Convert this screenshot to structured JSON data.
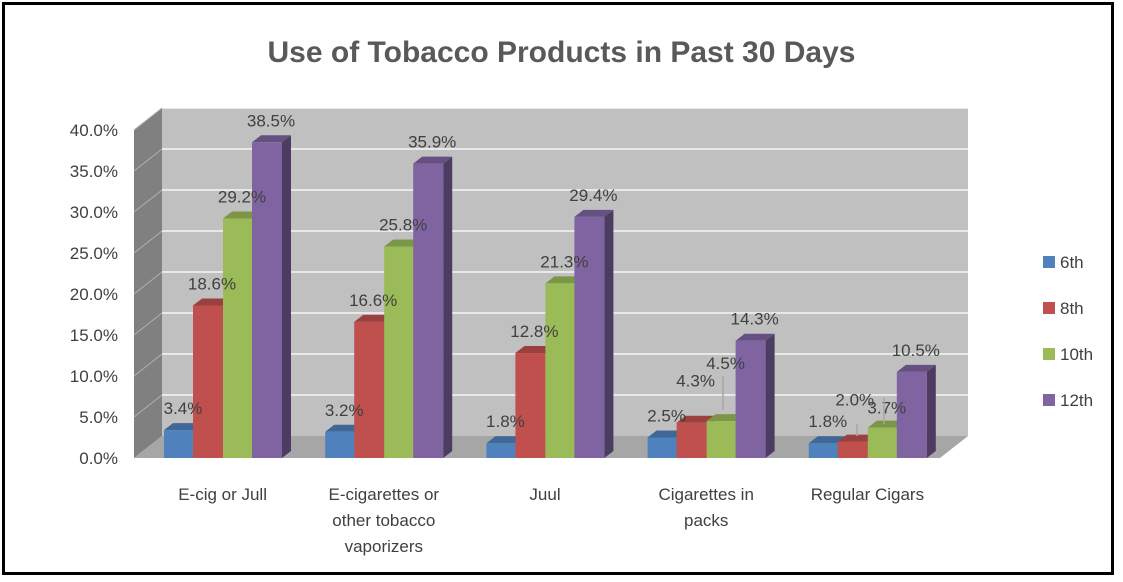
{
  "chart_data": {
    "type": "bar",
    "title": "Use of Tobacco Products in Past 30 Days",
    "categories": [
      [
        "E-cig or Jull"
      ],
      [
        "E-cigarettes or",
        "other tobacco",
        "vaporizers"
      ],
      [
        "Juul"
      ],
      [
        "Cigarettes in",
        "packs"
      ],
      [
        "Regular Cigars"
      ]
    ],
    "series": [
      {
        "name": "6th",
        "color": "#4F81BD",
        "values": [
          3.4,
          3.2,
          1.8,
          2.5,
          1.8
        ]
      },
      {
        "name": "8th",
        "color": "#C0504D",
        "values": [
          18.6,
          16.6,
          12.8,
          4.3,
          2.0
        ]
      },
      {
        "name": "10th",
        "color": "#9BBB59",
        "values": [
          29.2,
          25.8,
          21.3,
          4.5,
          3.7
        ]
      },
      {
        "name": "12th",
        "color": "#8064A2",
        "values": [
          38.5,
          35.9,
          29.4,
          14.3,
          10.5
        ]
      }
    ],
    "yticks": [
      "0.0%",
      "5.0%",
      "10.0%",
      "15.0%",
      "20.0%",
      "25.0%",
      "30.0%",
      "35.0%",
      "40.0%"
    ],
    "ylim": [
      0,
      40
    ],
    "value_suffix": "%",
    "grid": true,
    "legend_position": "right",
    "style": "3d-clustered-column"
  }
}
